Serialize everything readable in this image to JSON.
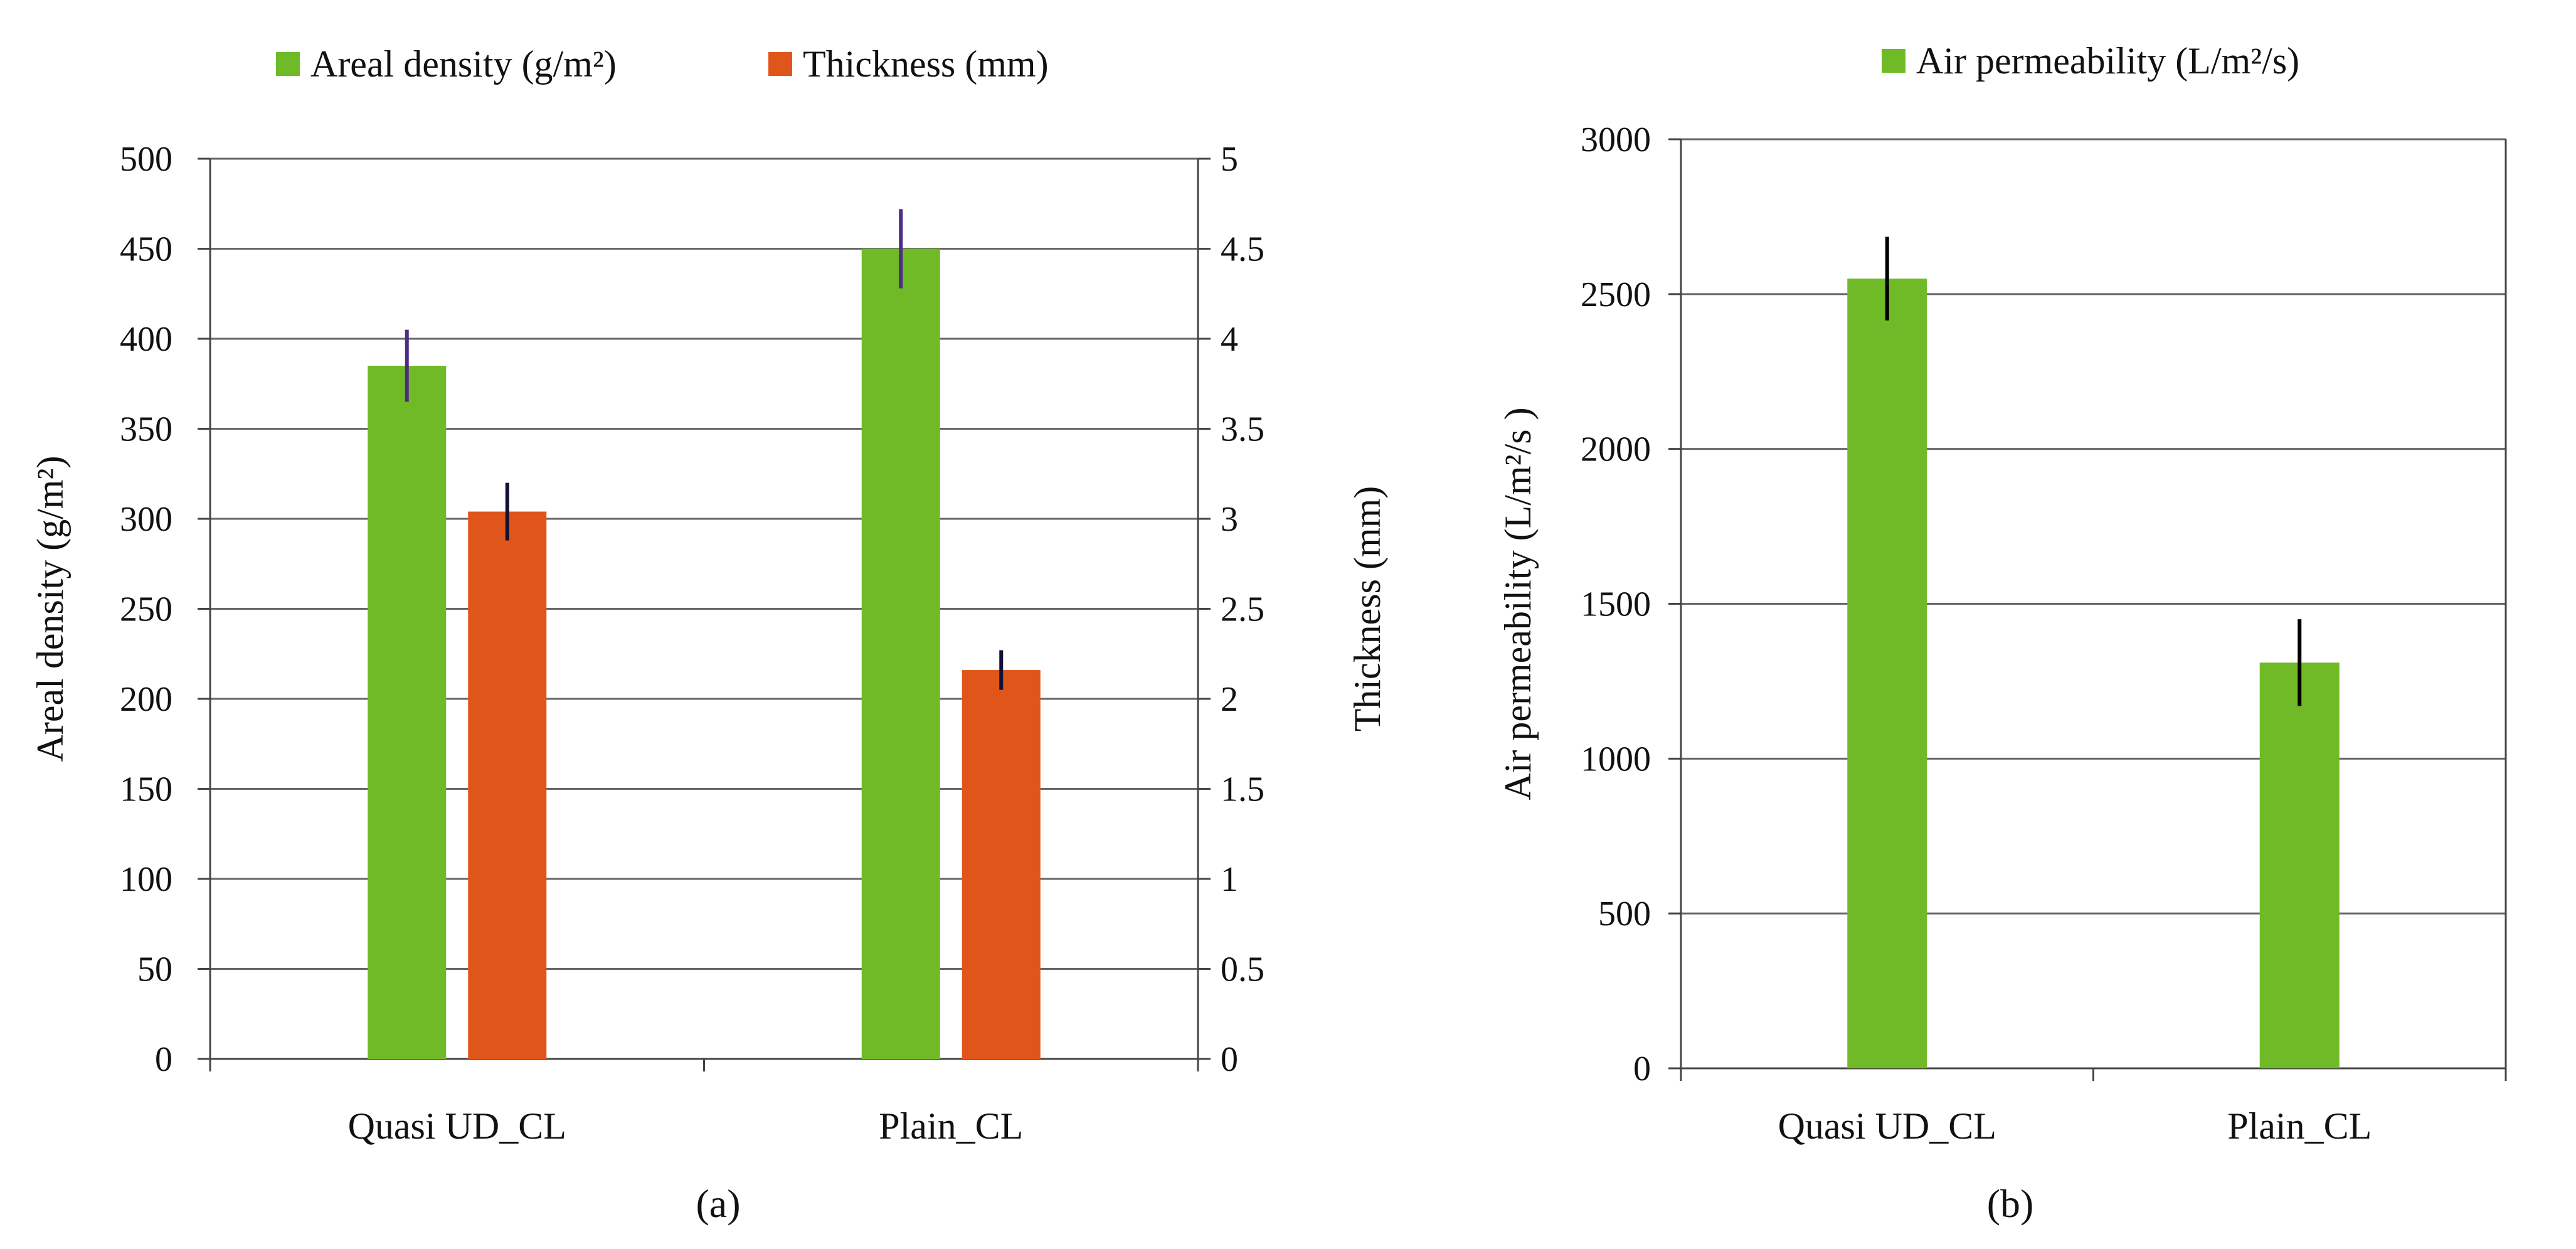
{
  "colors": {
    "green": "#70BA27",
    "orange": "#E0561A",
    "grid": "#666666",
    "axis": "#444444",
    "text": "#111111",
    "err_a": "#4B2E83",
    "err_b": "#000000"
  },
  "chart_data": [
    {
      "panel_label": "(a)",
      "type": "bar",
      "categories": [
        "Quasi UD_CL",
        "Plain_CL"
      ],
      "series": [
        {
          "name": "Areal density (g/m²)",
          "axis": "left",
          "color": "#70BA27",
          "values": [
            385,
            450
          ],
          "errors": [
            20,
            22
          ]
        },
        {
          "name": "Thickness (mm)",
          "axis": "right",
          "color": "#E0561A",
          "values": [
            3.04,
            2.16
          ],
          "errors": [
            0.16,
            0.11
          ]
        }
      ],
      "ylabel": "Areal density (g/m²)",
      "ylabel_right": "Thickness  (mm)",
      "ylim": [
        0,
        500
      ],
      "ylim_right": [
        0,
        5
      ],
      "yticks": [
        0,
        50,
        100,
        150,
        200,
        250,
        300,
        350,
        400,
        450,
        500
      ],
      "yticks_right": [
        "0",
        "0.5",
        "1",
        "1.5",
        "2",
        "2.5",
        "3",
        "3.5",
        "4",
        "4.5",
        "5"
      ],
      "grid": true,
      "legend": "top"
    },
    {
      "panel_label": "(b)",
      "type": "bar",
      "categories": [
        "Quasi UD_CL",
        "Plain_CL"
      ],
      "series": [
        {
          "name": "Air permeability  (L/m²/s)",
          "color": "#70BA27",
          "values": [
            2550,
            1310
          ],
          "errors": [
            135,
            140
          ]
        }
      ],
      "ylabel": "Air permeability (L/m²/s )",
      "ylim": [
        0,
        3000
      ],
      "yticks": [
        0,
        500,
        1000,
        1500,
        2000,
        2500,
        3000
      ],
      "grid": true,
      "legend": "top"
    }
  ]
}
